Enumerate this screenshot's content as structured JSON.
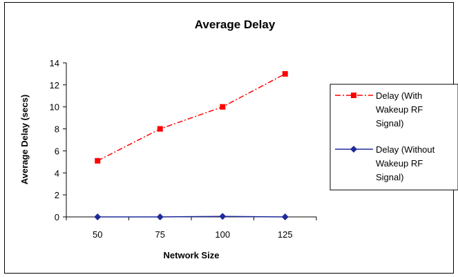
{
  "chart_data": {
    "type": "line",
    "title": "Average Delay",
    "xlabel": "Network Size",
    "ylabel": "Average Delay (secs)",
    "categories": [
      "50",
      "75",
      "100",
      "125"
    ],
    "ylim": [
      0,
      14
    ],
    "yticks": [
      0,
      2,
      4,
      6,
      8,
      10,
      12,
      14
    ],
    "grid": false,
    "legend_position": "right",
    "series": [
      {
        "name": "Delay (With Wakeup RF Signal)",
        "legend_lines": [
          "Delay (With",
          "Wakeup RF",
          "Signal)"
        ],
        "values": [
          5.1,
          8.0,
          10.0,
          13.0
        ],
        "color": "#ff0000",
        "line_style": "dash-dot",
        "marker": "square"
      },
      {
        "name": "Delay (Without Wakeup RF Signal)",
        "legend_lines": [
          "Delay (Without",
          "Wakeup RF",
          "Signal)"
        ],
        "values": [
          0.0,
          0.0,
          0.05,
          0.0
        ],
        "color": "#1f2a9a",
        "line_style": "solid",
        "marker": "diamond"
      }
    ]
  }
}
